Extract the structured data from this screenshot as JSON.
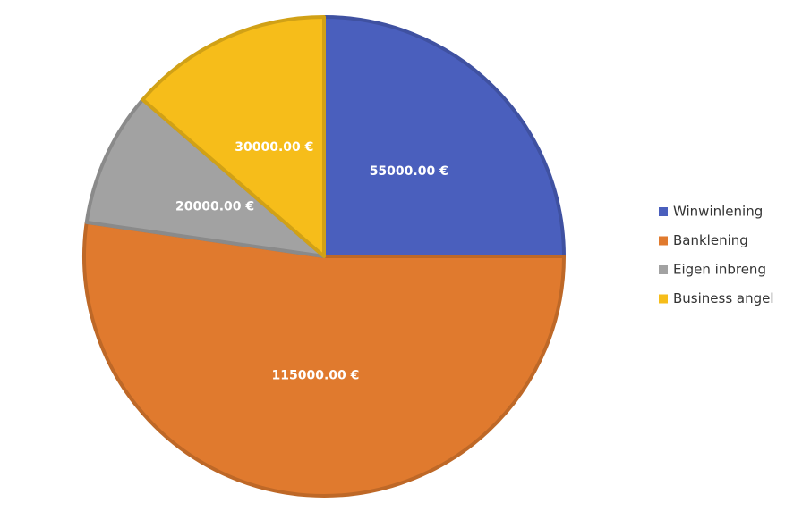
{
  "chart_data": {
    "type": "pie",
    "categories": [
      "Winwinlening",
      "Banklening",
      "Eigen inbreng",
      "Business angel"
    ],
    "values": [
      55000,
      115000,
      20000,
      30000
    ],
    "value_labels": [
      "55000.00 €",
      "115000.00 €",
      "20000.00 €",
      "30000.00 €"
    ],
    "colors": [
      "#4a5fbd",
      "#e07a2e",
      "#a2a2a2",
      "#f6bd1a"
    ],
    "legend": "right"
  }
}
